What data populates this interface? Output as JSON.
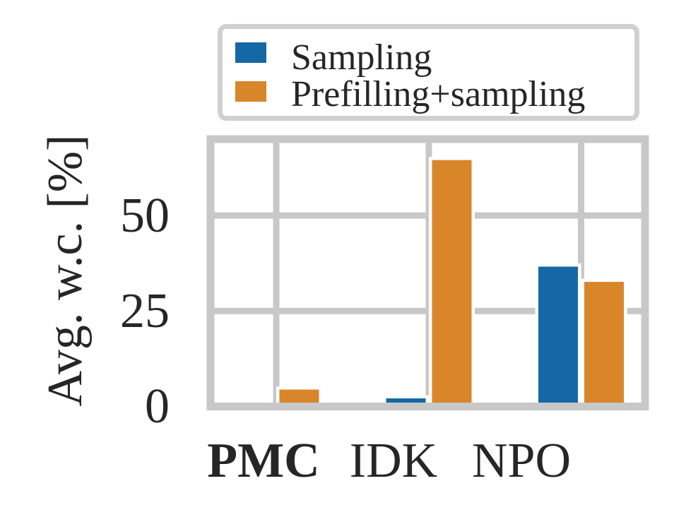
{
  "chart_data": {
    "type": "bar",
    "title": "",
    "xlabel": "",
    "ylabel": "Avg. w.c. [%]",
    "categories": [
      "PMC",
      "IDK",
      "NPO"
    ],
    "category_bold": [
      true,
      false,
      false
    ],
    "series": [
      {
        "name": "Sampling",
        "color": "#1468a5",
        "values": [
          0,
          2.1,
          36.6
        ]
      },
      {
        "name": "Prefilling+sampling",
        "color": "#d9852a",
        "values": [
          4.4,
          64.5,
          32.6
        ]
      }
    ],
    "yticks": [
      0,
      25,
      50
    ],
    "ytick_labels": [
      "0",
      "25",
      "50"
    ],
    "ylim": [
      0,
      70
    ],
    "grid": true,
    "legend_position": "above plot, upper center"
  },
  "style": {
    "grid_color": "#c8c8c8",
    "spine_color": "#c8c8c8",
    "text_color": "#262626"
  }
}
